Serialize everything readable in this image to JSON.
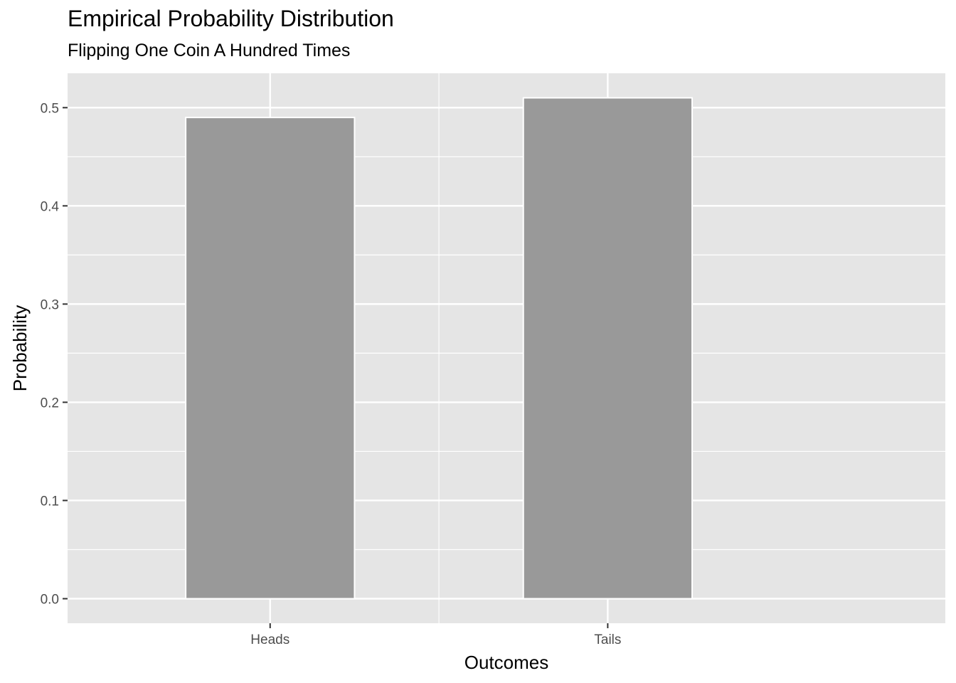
{
  "chart_data": {
    "type": "bar",
    "title": "Empirical Probability Distribution",
    "subtitle": "Flipping One Coin A Hundred Times",
    "xlabel": "Outcomes",
    "ylabel": "Probability",
    "categories": [
      "Heads",
      "Tails"
    ],
    "values": [
      0.49,
      0.51
    ],
    "ylim": [
      -0.025,
      0.535
    ],
    "yticks": [
      "0.0",
      "0.1",
      "0.2",
      "0.3",
      "0.4",
      "0.5"
    ],
    "ytick_values": [
      0,
      0.1,
      0.2,
      0.3,
      0.4,
      0.5
    ],
    "grid": true,
    "legend": "none",
    "colors": {
      "panel": "#e5e5e5",
      "grid": "#ffffff",
      "bar_fill": "#999999",
      "bar_outline": "#ffffff",
      "tick_text": "#4d4d4d",
      "tick_mark": "#333333"
    }
  }
}
